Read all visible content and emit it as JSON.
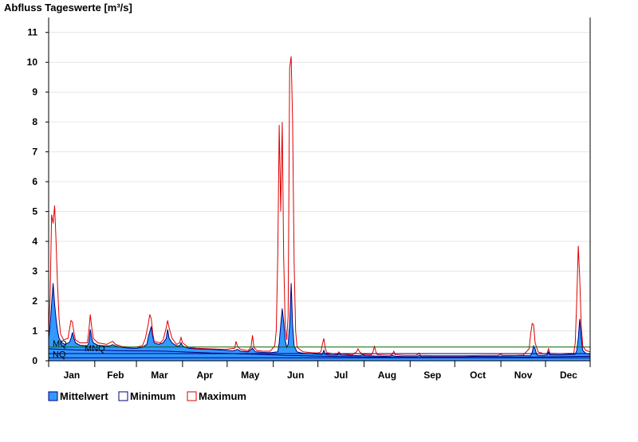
{
  "chart_data": {
    "type": "area",
    "title": "Abfluss Tageswerte [m³/s]",
    "xlabel": "",
    "ylabel": "",
    "ylim": [
      0,
      11.5
    ],
    "yticks": [
      0,
      1,
      2,
      3,
      4,
      5,
      6,
      7,
      8,
      9,
      10,
      11
    ],
    "x_unit": "day-of-year",
    "xlim": [
      1,
      365
    ],
    "months": [
      {
        "label": "Jan",
        "start": 1,
        "days": 31
      },
      {
        "label": "Feb",
        "start": 32,
        "days": 28
      },
      {
        "label": "Mar",
        "start": 60,
        "days": 31
      },
      {
        "label": "Apr",
        "start": 91,
        "days": 30
      },
      {
        "label": "May",
        "start": 121,
        "days": 31
      },
      {
        "label": "Jun",
        "start": 152,
        "days": 30
      },
      {
        "label": "Jul",
        "start": 182,
        "days": 31
      },
      {
        "label": "Aug",
        "start": 213,
        "days": 31
      },
      {
        "label": "Sep",
        "start": 244,
        "days": 30
      },
      {
        "label": "Oct",
        "start": 274,
        "days": 31
      },
      {
        "label": "Nov",
        "start": 305,
        "days": 30
      },
      {
        "label": "Dec",
        "start": 335,
        "days": 31
      }
    ],
    "grid": true,
    "legend_position": "bottom-left",
    "series": [
      {
        "name": "Mittelwert",
        "style": "area",
        "color": "#3399ff",
        "outline": "#000080",
        "points": [
          [
            1,
            0.75
          ],
          [
            2,
            1.2
          ],
          [
            3,
            1.9
          ],
          [
            4,
            2.6
          ],
          [
            5,
            1.9
          ],
          [
            6,
            1.4
          ],
          [
            7,
            1.0
          ],
          [
            8,
            0.75
          ],
          [
            10,
            0.6
          ],
          [
            12,
            0.55
          ],
          [
            15,
            0.62
          ],
          [
            16,
            0.75
          ],
          [
            17,
            0.95
          ],
          [
            18,
            0.75
          ],
          [
            19,
            0.6
          ],
          [
            22,
            0.52
          ],
          [
            27,
            0.5
          ],
          [
            28,
            0.6
          ],
          [
            29,
            1.05
          ],
          [
            30,
            0.75
          ],
          [
            31,
            0.6
          ],
          [
            34,
            0.52
          ],
          [
            38,
            0.5
          ],
          [
            42,
            0.5
          ],
          [
            44,
            0.54
          ],
          [
            46,
            0.5
          ],
          [
            50,
            0.45
          ],
          [
            56,
            0.42
          ],
          [
            60,
            0.42
          ],
          [
            64,
            0.45
          ],
          [
            67,
            0.55
          ],
          [
            68,
            0.8
          ],
          [
            70,
            1.15
          ],
          [
            71,
            0.8
          ],
          [
            72,
            0.6
          ],
          [
            75,
            0.55
          ],
          [
            78,
            0.6
          ],
          [
            80,
            0.75
          ],
          [
            81,
            1.05
          ],
          [
            82,
            0.75
          ],
          [
            84,
            0.6
          ],
          [
            87,
            0.5
          ],
          [
            89,
            0.5
          ],
          [
            90,
            0.6
          ],
          [
            91,
            0.5
          ],
          [
            95,
            0.42
          ],
          [
            100,
            0.4
          ],
          [
            110,
            0.38
          ],
          [
            120,
            0.35
          ],
          [
            125,
            0.33
          ],
          [
            128,
            0.38
          ],
          [
            130,
            0.32
          ],
          [
            135,
            0.3
          ],
          [
            138,
            0.42
          ],
          [
            140,
            0.3
          ],
          [
            145,
            0.28
          ],
          [
            150,
            0.27
          ],
          [
            155,
            0.3
          ],
          [
            156,
            0.6
          ],
          [
            157,
            1.2
          ],
          [
            158,
            1.75
          ],
          [
            159,
            1.3
          ],
          [
            160,
            0.7
          ],
          [
            161,
            0.45
          ],
          [
            162,
            0.55
          ],
          [
            163,
            1.2
          ],
          [
            164,
            2.6
          ],
          [
            165,
            1.2
          ],
          [
            166,
            0.5
          ],
          [
            168,
            0.3
          ],
          [
            172,
            0.25
          ],
          [
            178,
            0.24
          ],
          [
            180,
            0.23
          ],
          [
            185,
            0.22
          ],
          [
            186,
            0.35
          ],
          [
            187,
            0.22
          ],
          [
            190,
            0.2
          ],
          [
            195,
            0.19
          ],
          [
            196,
            0.24
          ],
          [
            198,
            0.19
          ],
          [
            205,
            0.18
          ],
          [
            210,
            0.17
          ],
          [
            212,
            0.2
          ],
          [
            214,
            0.17
          ],
          [
            220,
            0.16
          ],
          [
            225,
            0.15
          ],
          [
            230,
            0.14
          ],
          [
            232,
            0.18
          ],
          [
            234,
            0.15
          ],
          [
            240,
            0.14
          ],
          [
            248,
            0.14
          ],
          [
            250,
            0.18
          ],
          [
            252,
            0.14
          ],
          [
            260,
            0.14
          ],
          [
            270,
            0.14
          ],
          [
            280,
            0.14
          ],
          [
            290,
            0.15
          ],
          [
            300,
            0.15
          ],
          [
            310,
            0.16
          ],
          [
            318,
            0.17
          ],
          [
            325,
            0.17
          ],
          [
            326,
            0.28
          ],
          [
            327,
            0.5
          ],
          [
            328,
            0.4
          ],
          [
            329,
            0.22
          ],
          [
            330,
            0.18
          ],
          [
            334,
            0.18
          ],
          [
            336,
            0.2
          ],
          [
            337,
            0.3
          ],
          [
            338,
            0.2
          ],
          [
            345,
            0.2
          ],
          [
            355,
            0.22
          ],
          [
            356,
            0.35
          ],
          [
            357,
            0.75
          ],
          [
            358,
            1.4
          ],
          [
            359,
            0.8
          ],
          [
            360,
            0.35
          ],
          [
            362,
            0.25
          ],
          [
            365,
            0.22
          ]
        ]
      },
      {
        "name": "Minimum",
        "style": "line",
        "color": "#000080",
        "points": [
          [
            1,
            0.4
          ],
          [
            10,
            0.38
          ],
          [
            20,
            0.36
          ],
          [
            31,
            0.36
          ],
          [
            45,
            0.34
          ],
          [
            59,
            0.33
          ],
          [
            70,
            0.33
          ],
          [
            80,
            0.32
          ],
          [
            90,
            0.3
          ],
          [
            100,
            0.28
          ],
          [
            110,
            0.26
          ],
          [
            120,
            0.25
          ],
          [
            130,
            0.23
          ],
          [
            140,
            0.22
          ],
          [
            150,
            0.2
          ],
          [
            160,
            0.18
          ],
          [
            170,
            0.17
          ],
          [
            180,
            0.16
          ],
          [
            195,
            0.14
          ],
          [
            210,
            0.13
          ],
          [
            225,
            0.12
          ],
          [
            240,
            0.11
          ],
          [
            260,
            0.11
          ],
          [
            280,
            0.11
          ],
          [
            300,
            0.11
          ],
          [
            320,
            0.12
          ],
          [
            335,
            0.13
          ],
          [
            350,
            0.14
          ],
          [
            365,
            0.15
          ]
        ]
      },
      {
        "name": "Maximum",
        "style": "line",
        "color": "#dd0000",
        "points": [
          [
            1,
            0.9
          ],
          [
            2,
            2.2
          ],
          [
            3,
            4.9
          ],
          [
            4,
            4.6
          ],
          [
            5,
            5.2
          ],
          [
            6,
            4.0
          ],
          [
            7,
            2.5
          ],
          [
            8,
            1.4
          ],
          [
            9,
            0.9
          ],
          [
            11,
            0.7
          ],
          [
            14,
            0.75
          ],
          [
            15,
            1.05
          ],
          [
            16,
            1.35
          ],
          [
            17,
            1.3
          ],
          [
            18,
            0.95
          ],
          [
            19,
            0.7
          ],
          [
            22,
            0.6
          ],
          [
            27,
            0.6
          ],
          [
            28,
            1.0
          ],
          [
            29,
            1.55
          ],
          [
            30,
            1.1
          ],
          [
            31,
            0.75
          ],
          [
            34,
            0.6
          ],
          [
            40,
            0.55
          ],
          [
            44,
            0.65
          ],
          [
            46,
            0.55
          ],
          [
            50,
            0.48
          ],
          [
            56,
            0.45
          ],
          [
            60,
            0.46
          ],
          [
            64,
            0.5
          ],
          [
            66,
            0.75
          ],
          [
            68,
            1.25
          ],
          [
            69,
            1.55
          ],
          [
            70,
            1.4
          ],
          [
            71,
            0.9
          ],
          [
            72,
            0.65
          ],
          [
            76,
            0.6
          ],
          [
            78,
            0.7
          ],
          [
            80,
            1.1
          ],
          [
            81,
            1.35
          ],
          [
            82,
            1.1
          ],
          [
            84,
            0.75
          ],
          [
            87,
            0.55
          ],
          [
            89,
            0.6
          ],
          [
            90,
            0.78
          ],
          [
            91,
            0.6
          ],
          [
            95,
            0.45
          ],
          [
            100,
            0.42
          ],
          [
            110,
            0.4
          ],
          [
            120,
            0.38
          ],
          [
            126,
            0.42
          ],
          [
            127,
            0.65
          ],
          [
            128,
            0.48
          ],
          [
            130,
            0.38
          ],
          [
            135,
            0.34
          ],
          [
            137,
            0.45
          ],
          [
            138,
            0.85
          ],
          [
            139,
            0.45
          ],
          [
            141,
            0.34
          ],
          [
            145,
            0.32
          ],
          [
            150,
            0.32
          ],
          [
            153,
            0.5
          ],
          [
            154,
            1.0
          ],
          [
            155,
            3.5
          ],
          [
            156,
            7.9
          ],
          [
            157,
            5.0
          ],
          [
            158,
            8.0
          ],
          [
            159,
            3.5
          ],
          [
            160,
            1.2
          ],
          [
            161,
            0.7
          ],
          [
            162,
            1.5
          ],
          [
            163,
            9.8
          ],
          [
            164,
            10.2
          ],
          [
            165,
            8.0
          ],
          [
            166,
            3.3
          ],
          [
            167,
            1.0
          ],
          [
            168,
            0.45
          ],
          [
            172,
            0.3
          ],
          [
            178,
            0.27
          ],
          [
            182,
            0.26
          ],
          [
            184,
            0.3
          ],
          [
            185,
            0.55
          ],
          [
            186,
            0.75
          ],
          [
            187,
            0.4
          ],
          [
            188,
            0.27
          ],
          [
            192,
            0.24
          ],
          [
            195,
            0.22
          ],
          [
            196,
            0.3
          ],
          [
            197,
            0.24
          ],
          [
            205,
            0.2
          ],
          [
            208,
            0.3
          ],
          [
            209,
            0.4
          ],
          [
            210,
            0.3
          ],
          [
            212,
            0.22
          ],
          [
            218,
            0.2
          ],
          [
            219,
            0.3
          ],
          [
            220,
            0.48
          ],
          [
            221,
            0.3
          ],
          [
            222,
            0.2
          ],
          [
            230,
            0.18
          ],
          [
            232,
            0.22
          ],
          [
            233,
            0.32
          ],
          [
            234,
            0.2
          ],
          [
            240,
            0.18
          ],
          [
            248,
            0.18
          ],
          [
            250,
            0.26
          ],
          [
            251,
            0.18
          ],
          [
            260,
            0.17
          ],
          [
            280,
            0.17
          ],
          [
            295,
            0.18
          ],
          [
            303,
            0.18
          ],
          [
            305,
            0.23
          ],
          [
            306,
            0.18
          ],
          [
            315,
            0.18
          ],
          [
            320,
            0.19
          ],
          [
            324,
            0.4
          ],
          [
            325,
            0.9
          ],
          [
            326,
            1.25
          ],
          [
            327,
            1.2
          ],
          [
            328,
            0.6
          ],
          [
            330,
            0.3
          ],
          [
            334,
            0.23
          ],
          [
            336,
            0.25
          ],
          [
            337,
            0.4
          ],
          [
            338,
            0.25
          ],
          [
            345,
            0.24
          ],
          [
            354,
            0.25
          ],
          [
            355,
            0.6
          ],
          [
            356,
            2.0
          ],
          [
            357,
            3.85
          ],
          [
            358,
            2.8
          ],
          [
            359,
            1.2
          ],
          [
            360,
            0.5
          ],
          [
            362,
            0.35
          ],
          [
            365,
            0.3
          ]
        ]
      }
    ],
    "reference_lines": [
      {
        "label": "MQ",
        "value": 0.46,
        "color": "#006600"
      },
      {
        "label": "MNQ",
        "value": 0.24,
        "color": "#000080"
      },
      {
        "label": "NQ",
        "value": 0.1,
        "color": "#000080"
      }
    ]
  }
}
